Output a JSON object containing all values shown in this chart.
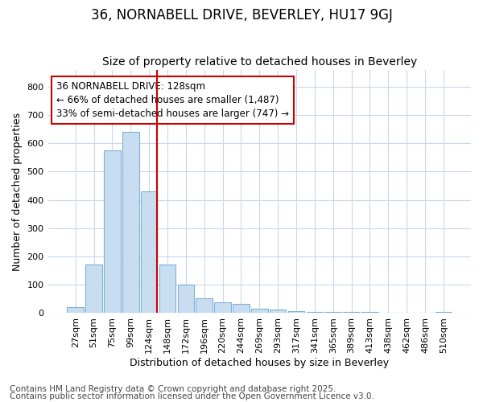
{
  "title": "36, NORNABELL DRIVE, BEVERLEY, HU17 9GJ",
  "subtitle": "Size of property relative to detached houses in Beverley",
  "xlabel": "Distribution of detached houses by size in Beverley",
  "ylabel": "Number of detached properties",
  "categories": [
    "27sqm",
    "51sqm",
    "75sqm",
    "99sqm",
    "124sqm",
    "148sqm",
    "172sqm",
    "196sqm",
    "220sqm",
    "244sqm",
    "269sqm",
    "293sqm",
    "317sqm",
    "341sqm",
    "365sqm",
    "389sqm",
    "413sqm",
    "438sqm",
    "462sqm",
    "486sqm",
    "510sqm"
  ],
  "values": [
    20,
    170,
    575,
    640,
    430,
    170,
    100,
    52,
    38,
    32,
    14,
    10,
    7,
    4,
    3,
    2,
    2,
    1,
    1,
    0,
    2
  ],
  "bar_color": "#c8ddf0",
  "bar_edgecolor": "#7fb0d8",
  "bar_linewidth": 0.8,
  "red_line_index": 4,
  "red_line_color": "#cc0000",
  "annotation_text": "36 NORNABELL DRIVE: 128sqm\n← 66% of detached houses are smaller (1,487)\n33% of semi-detached houses are larger (747) →",
  "annotation_box_edgecolor": "#cc0000",
  "annotation_box_facecolor": "white",
  "ylim": [
    0,
    860
  ],
  "yticks": [
    0,
    100,
    200,
    300,
    400,
    500,
    600,
    700,
    800
  ],
  "grid_color": "#c8d8f0",
  "background_color": "#ffffff",
  "footnote1": "Contains HM Land Registry data © Crown copyright and database right 2025.",
  "footnote2": "Contains public sector information licensed under the Open Government Licence v3.0.",
  "title_fontsize": 12,
  "subtitle_fontsize": 10,
  "axis_label_fontsize": 9,
  "tick_fontsize": 8,
  "annotation_fontsize": 8.5,
  "footnote_fontsize": 7.5
}
